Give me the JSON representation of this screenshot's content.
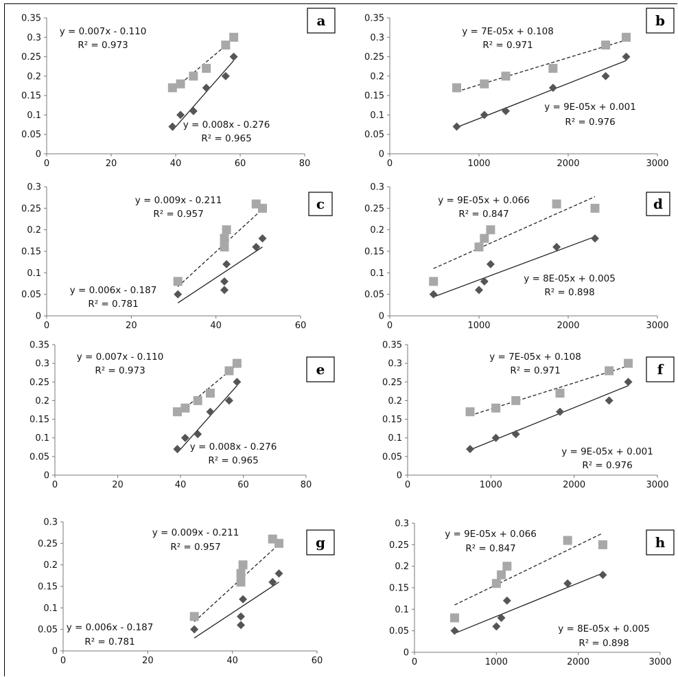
{
  "chart_data": [
    {
      "type": "scatter",
      "panel_label": "a",
      "xlim": [
        0,
        80
      ],
      "ylim": [
        0,
        0.35
      ],
      "x_ticks": [
        "0",
        "20",
        "40",
        "60",
        "80"
      ],
      "y_ticks": [
        "0",
        "0.05",
        "0.1",
        "0.15",
        "0.2",
        "0.25",
        "0.3",
        "0.35"
      ],
      "series": [
        {
          "marker": "square",
          "color": "#a8a8a8",
          "x": [
            39,
            41.5,
            45.5,
            49.5,
            55.5,
            58
          ],
          "y": [
            0.17,
            0.18,
            0.2,
            0.22,
            0.28,
            0.3
          ],
          "trendline": {
            "style": "dashed",
            "x": [
              39,
              58
            ],
            "y": [
              0.163,
              0.296
            ]
          },
          "equation": "y = 0.007x - 0.110",
          "r2": "R² = 0.973"
        },
        {
          "marker": "diamond",
          "color": "#555555",
          "x": [
            39,
            41.5,
            45.5,
            49.5,
            55.5,
            58
          ],
          "y": [
            0.07,
            0.1,
            0.11,
            0.17,
            0.2,
            0.25
          ],
          "trendline": {
            "style": "solid",
            "x": [
              39,
              58
            ],
            "y": [
              0.06,
              0.24
            ]
          },
          "equation": "y = 0.008x - 0.276",
          "r2": "R² = 0.965"
        }
      ]
    },
    {
      "type": "scatter",
      "panel_label": "b",
      "xlim": [
        0,
        3000
      ],
      "ylim": [
        0,
        0.35
      ],
      "x_ticks": [
        "0",
        "1000",
        "2000",
        "3000"
      ],
      "y_ticks": [
        "0",
        "0.05",
        "0.1",
        "0.15",
        "0.2",
        "0.25",
        "0.3",
        "0.35"
      ],
      "series": [
        {
          "marker": "square",
          "color": "#a8a8a8",
          "x": [
            750,
            1060,
            1300,
            1830,
            2420,
            2650
          ],
          "y": [
            0.17,
            0.18,
            0.2,
            0.22,
            0.28,
            0.3
          ],
          "trendline": {
            "style": "dashed",
            "x": [
              750,
              2650
            ],
            "y": [
              0.16,
              0.293
            ]
          },
          "equation": "y = 7E-05x + 0.108",
          "r2": "R² = 0.971"
        },
        {
          "marker": "diamond",
          "color": "#555555",
          "x": [
            750,
            1060,
            1300,
            1830,
            2420,
            2650
          ],
          "y": [
            0.07,
            0.1,
            0.11,
            0.17,
            0.2,
            0.25
          ],
          "trendline": {
            "style": "solid",
            "x": [
              750,
              2650
            ],
            "y": [
              0.068,
              0.24
            ]
          },
          "equation": "y = 9E-05x + 0.001",
          "r2": "R² = 0.976"
        }
      ]
    },
    {
      "type": "scatter",
      "panel_label": "c",
      "xlim": [
        0,
        60
      ],
      "ylim": [
        0,
        0.3
      ],
      "x_ticks": [
        "0",
        "20",
        "40",
        "60"
      ],
      "y_ticks": [
        "0",
        "0.05",
        "0.1",
        "0.15",
        "0.2",
        "0.25",
        "0.3"
      ],
      "series": [
        {
          "marker": "square",
          "color": "#a8a8a8",
          "x": [
            31,
            42,
            42,
            42.5,
            49.5,
            51
          ],
          "y": [
            0.08,
            0.16,
            0.18,
            0.2,
            0.26,
            0.25
          ],
          "trendline": {
            "style": "dashed",
            "x": [
              31,
              51
            ],
            "y": [
              0.068,
              0.248
            ]
          },
          "equation": "y = 0.009x - 0.211",
          "r2": "R² = 0.957"
        },
        {
          "marker": "diamond",
          "color": "#555555",
          "x": [
            31,
            42,
            42,
            42.5,
            49.5,
            51
          ],
          "y": [
            0.05,
            0.06,
            0.08,
            0.12,
            0.16,
            0.18
          ],
          "trendline": {
            "style": "solid",
            "x": [
              31,
              51
            ],
            "y": [
              0.03,
              0.16
            ]
          },
          "equation": "y = 0.006x - 0.187",
          "r2": "R² = 0.781"
        }
      ]
    },
    {
      "type": "scatter",
      "panel_label": "d",
      "xlim": [
        0,
        3000
      ],
      "ylim": [
        0,
        0.3
      ],
      "x_ticks": [
        "0",
        "1000",
        "2000",
        "3000"
      ],
      "y_ticks": [
        "0",
        "0.05",
        "0.1",
        "0.15",
        "0.2",
        "0.25",
        "0.3"
      ],
      "series": [
        {
          "marker": "square",
          "color": "#a8a8a8",
          "x": [
            490,
            1000,
            1060,
            1130,
            1870,
            2300
          ],
          "y": [
            0.08,
            0.16,
            0.18,
            0.2,
            0.26,
            0.25
          ],
          "trendline": {
            "style": "dashed",
            "x": [
              490,
              2300
            ],
            "y": [
              0.11,
              0.277
            ]
          },
          "equation": "y = 9E-05x + 0.066",
          "r2": "R² = 0.847"
        },
        {
          "marker": "diamond",
          "color": "#555555",
          "x": [
            490,
            1000,
            1060,
            1130,
            1870,
            2300
          ],
          "y": [
            0.05,
            0.06,
            0.08,
            0.12,
            0.16,
            0.18
          ],
          "trendline": {
            "style": "solid",
            "x": [
              490,
              2300
            ],
            "y": [
              0.044,
              0.184
            ]
          },
          "equation": "y = 8E-05x + 0.005",
          "r2": "R² = 0.898"
        }
      ]
    },
    {
      "type": "scatter",
      "panel_label": "e",
      "xlim": [
        0,
        80
      ],
      "ylim": [
        0,
        0.35
      ],
      "x_ticks": [
        "0",
        "20",
        "40",
        "60",
        "80"
      ],
      "y_ticks": [
        "0",
        "0.05",
        "0.1",
        "0.15",
        "0.2",
        "0.25",
        "0.3",
        "0.35"
      ],
      "series": [
        {
          "marker": "square",
          "color": "#a8a8a8",
          "x": [
            39,
            41.5,
            45.5,
            49.5,
            55.5,
            58
          ],
          "y": [
            0.17,
            0.18,
            0.2,
            0.22,
            0.28,
            0.3
          ],
          "trendline": {
            "style": "dashed",
            "x": [
              39,
              58
            ],
            "y": [
              0.163,
              0.296
            ]
          },
          "equation": "y = 0.007x - 0.110",
          "r2": "R² = 0.973"
        },
        {
          "marker": "diamond",
          "color": "#555555",
          "x": [
            39,
            41.5,
            45.5,
            49.5,
            55.5,
            58
          ],
          "y": [
            0.07,
            0.1,
            0.11,
            0.17,
            0.2,
            0.25
          ],
          "trendline": {
            "style": "solid",
            "x": [
              39,
              58
            ],
            "y": [
              0.06,
              0.24
            ]
          },
          "equation": "y = 0.008x - 0.276",
          "r2": "R² = 0.965"
        }
      ]
    },
    {
      "type": "scatter",
      "panel_label": "f",
      "xlim": [
        0,
        3000
      ],
      "ylim": [
        0,
        0.35
      ],
      "x_ticks": [
        "0",
        "1000",
        "2000",
        "3000"
      ],
      "y_ticks": [
        "0",
        "0.05",
        "0.1",
        "0.15",
        "0.2",
        "0.25",
        "0.3",
        "0.35"
      ],
      "series": [
        {
          "marker": "square",
          "color": "#a8a8a8",
          "x": [
            750,
            1060,
            1300,
            1830,
            2420,
            2650
          ],
          "y": [
            0.17,
            0.18,
            0.2,
            0.22,
            0.28,
            0.3
          ],
          "trendline": {
            "style": "dashed",
            "x": [
              750,
              2650
            ],
            "y": [
              0.16,
              0.293
            ]
          },
          "equation": "y = 7E-05x + 0.108",
          "r2": "R² = 0.971"
        },
        {
          "marker": "diamond",
          "color": "#555555",
          "x": [
            750,
            1060,
            1300,
            1830,
            2420,
            2650
          ],
          "y": [
            0.07,
            0.1,
            0.11,
            0.17,
            0.2,
            0.25
          ],
          "trendline": {
            "style": "solid",
            "x": [
              750,
              2650
            ],
            "y": [
              0.068,
              0.24
            ]
          },
          "equation": "y = 9E-05x + 0.001",
          "r2": "R² = 0.976"
        }
      ]
    },
    {
      "type": "scatter",
      "panel_label": "g",
      "xlim": [
        0,
        60
      ],
      "ylim": [
        0,
        0.3
      ],
      "x_ticks": [
        "0",
        "20",
        "40",
        "60"
      ],
      "y_ticks": [
        "0",
        "0.05",
        "0.1",
        "0.15",
        "0.2",
        "0.25",
        "0.3"
      ],
      "series": [
        {
          "marker": "square",
          "color": "#a8a8a8",
          "x": [
            31,
            42,
            42,
            42.5,
            49.5,
            51
          ],
          "y": [
            0.08,
            0.16,
            0.18,
            0.2,
            0.26,
            0.25
          ],
          "trendline": {
            "style": "dashed",
            "x": [
              31,
              51
            ],
            "y": [
              0.068,
              0.248
            ]
          },
          "equation": "y = 0.009x - 0.211",
          "r2": "R² = 0.957"
        },
        {
          "marker": "diamond",
          "color": "#555555",
          "x": [
            31,
            42,
            42,
            42.5,
            49.5,
            51
          ],
          "y": [
            0.05,
            0.06,
            0.08,
            0.12,
            0.16,
            0.18
          ],
          "trendline": {
            "style": "solid",
            "x": [
              31,
              51
            ],
            "y": [
              0.03,
              0.16
            ]
          },
          "equation": "y = 0.006x - 0.187",
          "r2": "R² = 0.781"
        }
      ]
    },
    {
      "type": "scatter",
      "panel_label": "h",
      "xlim": [
        0,
        3000
      ],
      "ylim": [
        0,
        0.3
      ],
      "x_ticks": [
        "0",
        "1000",
        "2000",
        "3000"
      ],
      "y_ticks": [
        "0",
        "0.05",
        "0.1",
        "0.15",
        "0.2",
        "0.25",
        "0.3"
      ],
      "series": [
        {
          "marker": "square",
          "color": "#a8a8a8",
          "x": [
            490,
            1000,
            1060,
            1130,
            1870,
            2300
          ],
          "y": [
            0.08,
            0.16,
            0.18,
            0.2,
            0.26,
            0.25
          ],
          "trendline": {
            "style": "dashed",
            "x": [
              490,
              2300
            ],
            "y": [
              0.11,
              0.277
            ]
          },
          "equation": "y = 9E-05x + 0.066",
          "r2": "R² = 0.847"
        },
        {
          "marker": "diamond",
          "color": "#555555",
          "x": [
            490,
            1000,
            1060,
            1130,
            1870,
            2300
          ],
          "y": [
            0.05,
            0.06,
            0.08,
            0.12,
            0.16,
            0.18
          ],
          "trendline": {
            "style": "solid",
            "x": [
              490,
              2300
            ],
            "y": [
              0.044,
              0.184
            ]
          },
          "equation": "y = 8E-05x + 0.005",
          "r2": "R² = 0.898"
        }
      ]
    }
  ]
}
